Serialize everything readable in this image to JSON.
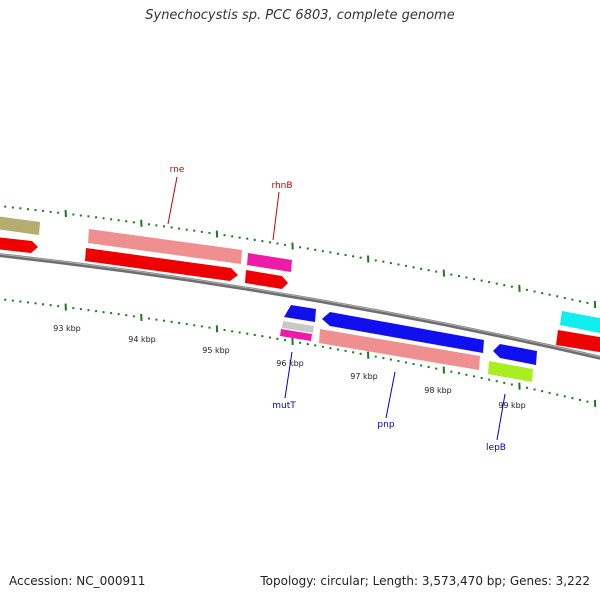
{
  "title": "Synechocystis sp. PCC 6803, complete genome",
  "footer": {
    "accession": "Accession: NC_000911",
    "topology": "Topology: circular; Length: 3,573,470 bp; Genes: 3,222"
  },
  "colors": {
    "backbone": "#7a7a7a",
    "ticks": "#1a7a1a",
    "forward_label": "#cc0000",
    "reverse_label": "#0000cc"
  },
  "kbp_labels": [
    "93 kbp",
    "94 kbp",
    "95 kbp",
    "96 kbp",
    "97 kbp",
    "98 kbp",
    "99 kbp"
  ],
  "gene_labels": [
    {
      "name": "rne",
      "strand": "forward"
    },
    {
      "name": "rhnB",
      "strand": "forward"
    },
    {
      "name": "mutT",
      "strand": "reverse"
    },
    {
      "name": "pnp",
      "strand": "reverse"
    },
    {
      "name": "lepB",
      "strand": "reverse"
    }
  ]
}
